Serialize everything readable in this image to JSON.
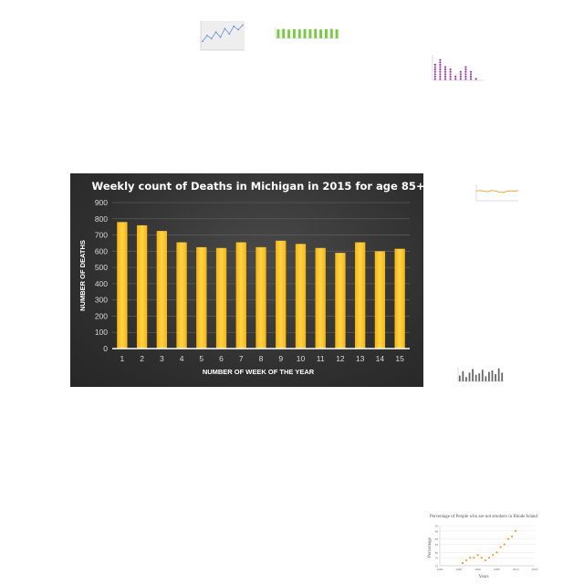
{
  "chart_data": [
    {
      "type": "bar",
      "title": "Weekly count of Deaths in Michigan in 2015 for age 85+",
      "xlabel": "NUMBER OF WEEK OF THE YEAR",
      "ylabel": "NUMBER OF DEATHS",
      "categories": [
        "1",
        "2",
        "3",
        "4",
        "5",
        "6",
        "7",
        "8",
        "9",
        "10",
        "11",
        "12",
        "13",
        "14",
        "15"
      ],
      "values": [
        780,
        760,
        725,
        655,
        625,
        620,
        655,
        625,
        665,
        645,
        620,
        590,
        655,
        600,
        615
      ],
      "ylim": [
        0,
        900
      ],
      "yticks": [
        "0",
        "100",
        "200",
        "300",
        "400",
        "500",
        "600",
        "700",
        "800",
        "900"
      ],
      "grid": true,
      "colors": {
        "bar": "#f5b60f",
        "bar_light": "#ffd34a",
        "background": "#333333"
      }
    },
    {
      "type": "line",
      "values": [
        30,
        55,
        42,
        70,
        48,
        85,
        62,
        95,
        80,
        100
      ],
      "ylim": [
        0,
        110
      ],
      "colors": {
        "line": "#6f8fd8"
      }
    },
    {
      "type": "bar",
      "values": [
        90,
        95,
        88,
        92,
        90,
        93,
        91,
        94,
        89,
        92,
        95,
        90
      ],
      "ylim": [
        0,
        110
      ],
      "colors": {
        "bar": "#7ac943"
      }
    },
    {
      "type": "scatter",
      "values": [
        70,
        85,
        55,
        45,
        20,
        40,
        55,
        35,
        10,
        5
      ],
      "ylim": [
        0,
        100
      ],
      "colors": {
        "point": "#9b3fa8"
      }
    },
    {
      "type": "line",
      "values": [
        60,
        62,
        58,
        55,
        63,
        60,
        52,
        50,
        57,
        61,
        59,
        62
      ],
      "ylim": [
        0,
        100
      ],
      "colors": {
        "line": "#f39c3a"
      }
    },
    {
      "type": "bar",
      "values": [
        40,
        70,
        30,
        60,
        85,
        45,
        55,
        80,
        35,
        65,
        75,
        50,
        90,
        60
      ],
      "ylim": [
        0,
        100
      ],
      "colors": {
        "bar": "#666666"
      }
    },
    {
      "type": "scatter",
      "title": "Percentage of People who are not smokers in Rhode Island",
      "xlabel": "Years",
      "ylabel": "Percentage",
      "x": [
        1996,
        1997,
        1998,
        1999,
        2000,
        2001,
        2002,
        2003,
        2004,
        2005,
        2006,
        2007,
        2008,
        2009,
        2010
      ],
      "values": [
        76,
        77,
        78,
        78,
        79,
        78,
        77,
        78,
        79,
        80,
        82,
        83,
        85,
        86,
        88
      ],
      "xticks": [
        "1990",
        "1995",
        "2000",
        "2005",
        "2010",
        "2015"
      ],
      "yticks": [
        "75",
        "78",
        "80",
        "83",
        "85",
        "88",
        "90"
      ],
      "xlim": [
        1990,
        2015
      ],
      "ylim": [
        75,
        90
      ],
      "colors": {
        "point": "#f39c3a"
      }
    }
  ]
}
